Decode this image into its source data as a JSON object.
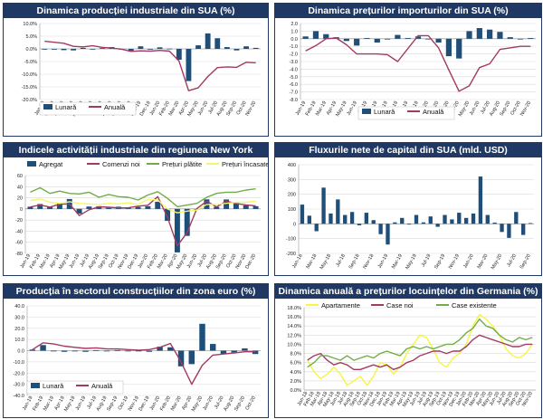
{
  "chart_data": [
    {
      "id": "p1",
      "type": "bar",
      "title": "Dinamica producției industriale din SUA (%)",
      "categories": [
        "Jan-19",
        "Feb-19",
        "Mar-19",
        "Apr-19",
        "May-19",
        "Jun-19",
        "Jul-19",
        "Aug-19",
        "Sep-19",
        "Oct-19",
        "Nov-19",
        "Dec-19",
        "Jan-20",
        "Feb-20",
        "Mar-20",
        "Apr-20",
        "May-20",
        "Jun-20",
        "Jul-20",
        "Aug-20",
        "Sep-20",
        "Oct-20",
        "Nov-20"
      ],
      "ylim": [
        -20,
        10
      ],
      "yticks": [
        10,
        5,
        0,
        -5,
        -10,
        -15,
        -20
      ],
      "ytick_labels": [
        "10.0%",
        "5.0%",
        "0.0%",
        "-5.0%",
        "-10.0%",
        "-15.0%",
        "-20.0%"
      ],
      "series": [
        {
          "name": "Lunară",
          "type": "bar",
          "color": "#1f4e79",
          "values": [
            -0.3,
            -0.3,
            -0.5,
            -0.6,
            0.4,
            0.0,
            0.3,
            0.7,
            -0.3,
            -0.7,
            1.0,
            -0.3,
            0.6,
            0.1,
            -4.3,
            -12.7,
            1.4,
            6.1,
            4.2,
            0.7,
            -0.6,
            1.0,
            0.4
          ]
        },
        {
          "name": "Anuală",
          "type": "line",
          "color": "#a23a63",
          "values": [
            3.0,
            2.6,
            2.2,
            1.0,
            0.8,
            1.2,
            0.6,
            0.3,
            -0.1,
            -1.0,
            -0.8,
            -0.9,
            -0.6,
            -0.9,
            -4.8,
            -16.5,
            -15.4,
            -10.9,
            -7.4,
            -7.1,
            -7.3,
            -5.3,
            -5.5
          ]
        }
      ]
    },
    {
      "id": "p2",
      "type": "bar",
      "title": "Dinamica prețurilor importurilor din SUA (%)",
      "categories": [
        "Jan-19",
        "Feb-19",
        "Mar-19",
        "Apr-19",
        "May-19",
        "Jun-19",
        "Jul-19",
        "Aug-19",
        "Sep-19",
        "Oct-19",
        "Nov-19",
        "Dec-19",
        "Jan-20",
        "Feb-20",
        "Mar-20",
        "Apr-20",
        "May-20",
        "Jun-20",
        "Jul-20",
        "Aug-20",
        "Sep-20",
        "Oct-20",
        "Nov-20"
      ],
      "ylim": [
        -8,
        2
      ],
      "yticks": [
        2,
        1,
        0,
        -1,
        -2,
        -3,
        -4,
        -5,
        -6,
        -7,
        -8
      ],
      "ytick_labels": [
        "2.0",
        "1.0",
        "0.0",
        "-1.0",
        "-2.0",
        "-3.0",
        "-4.0",
        "-5.0",
        "-6.0",
        "-7.0",
        "-8.0"
      ],
      "series": [
        {
          "name": "Lunară",
          "type": "bar",
          "color": "#1f4e79",
          "values": [
            0.3,
            1.0,
            0.6,
            0.2,
            -0.3,
            -0.9,
            0.1,
            -0.5,
            -0.1,
            0.5,
            0.1,
            0.3,
            0.0,
            -0.5,
            -2.3,
            -2.6,
            1.0,
            1.4,
            1.2,
            0.9,
            0.2,
            -0.1,
            0.1
          ]
        },
        {
          "name": "Anuală",
          "type": "line",
          "color": "#a23a63",
          "values": [
            -1.6,
            -0.9,
            0.0,
            0.1,
            -0.8,
            -2.0,
            -2.0,
            -2.0,
            -2.1,
            -3.0,
            -1.3,
            0.4,
            0.4,
            -1.2,
            -4.1,
            -6.9,
            -6.2,
            -3.8,
            -3.3,
            -1.4,
            -1.2,
            -1.0,
            -1.0
          ]
        }
      ]
    },
    {
      "id": "p3",
      "type": "bar",
      "title": "Indicele activității industriale din regiunea New York",
      "categories": [
        "Jan-19",
        "Feb-19",
        "Mar-19",
        "Apr-19",
        "May-19",
        "Jun-19",
        "Jul-19",
        "Aug-19",
        "Sep-19",
        "Oct-19",
        "Nov-19",
        "Dec-19",
        "Jan-20",
        "Feb-20",
        "Mar-20",
        "Apr-20",
        "May-20",
        "Jun-20",
        "Jul-20",
        "Aug-20",
        "Sep-20",
        "Oct-20",
        "Nov-20",
        "Dec-20"
      ],
      "ylim": [
        -80,
        60
      ],
      "yticks": [
        60,
        40,
        20,
        0,
        -20,
        -40,
        -60,
        -80
      ],
      "ytick_labels": [
        "60",
        "40",
        "20",
        "0",
        "-20",
        "-40",
        "-60",
        "-80"
      ],
      "series": [
        {
          "name": "Agregat",
          "type": "bar",
          "color": "#1f4e79",
          "values": [
            3.9,
            8.8,
            3.7,
            10.1,
            17.8,
            -8.6,
            4.3,
            4.8,
            2.0,
            4.0,
            2.9,
            3.5,
            4.8,
            12.9,
            -21.5,
            -78.2,
            -48.5,
            -0.2,
            17.2,
            3.7,
            17.0,
            10.5,
            6.3,
            4.9
          ]
        },
        {
          "name": "Comenzi noi",
          "type": "line",
          "color": "#a23a63",
          "values": [
            3.5,
            6.9,
            3.4,
            8.4,
            9.1,
            -12.0,
            -1.5,
            3.9,
            3.1,
            1.9,
            2.0,
            5.0,
            6.6,
            22.1,
            -15.1,
            -66.5,
            -42.4,
            0.8,
            13.9,
            3.7,
            14.1,
            9.7,
            7.3,
            5.4
          ]
        },
        {
          "name": "Prețuri plătite",
          "type": "line",
          "color": "#70ad47",
          "values": [
            30.0,
            38.0,
            28.0,
            32.0,
            28.0,
            27.0,
            30.0,
            21.0,
            26.0,
            22.0,
            21.0,
            16.0,
            25.0,
            31.0,
            19.0,
            4.0,
            7.0,
            10.0,
            21.0,
            28.0,
            30.0,
            30.0,
            34.0,
            36.0
          ]
        },
        {
          "name": "Prețuri încasate",
          "type": "line",
          "color": "#f5f56a",
          "values": [
            15.0,
            18.0,
            12.0,
            10.0,
            13.0,
            10.0,
            9.0,
            8.0,
            10.0,
            9.0,
            11.0,
            8.0,
            17.0,
            16.0,
            0.0,
            -7.0,
            -4.0,
            -2.0,
            8.0,
            8.0,
            10.0,
            12.0,
            12.0,
            14.0
          ]
        }
      ]
    },
    {
      "id": "p4",
      "type": "bar",
      "title": "Fluxurile nete de capital din SUA (mld. USD)",
      "categories": [
        "Jan-18",
        "Feb-18",
        "Mar-18",
        "Apr-18",
        "May-18",
        "Jun-18",
        "Jul-18",
        "Aug-18",
        "Sep-18",
        "Oct-18",
        "Nov-18",
        "Dec-18",
        "Jan-19",
        "Feb-19",
        "Mar-19",
        "Apr-19",
        "May-19",
        "Jun-19",
        "Jul-19",
        "Aug-19",
        "Sep-19",
        "Oct-19",
        "Nov-19",
        "Dec-19",
        "Jan-20",
        "Feb-20",
        "Mar-20",
        "Apr-20",
        "May-20",
        "Jun-20",
        "Jul-20",
        "Aug-20",
        "Sep-20"
      ],
      "ylim": [
        -200,
        400
      ],
      "yticks": [
        400,
        300,
        200,
        100,
        0,
        -100,
        -200
      ],
      "ytick_labels": [
        "400",
        "300",
        "200",
        "100",
        "0",
        "-100",
        "-200"
      ],
      "series": [
        {
          "name": "",
          "type": "bar",
          "color": "#1f4e79",
          "values": [
            130,
            55,
            -50,
            245,
            70,
            165,
            60,
            80,
            -10,
            75,
            25,
            -70,
            -140,
            10,
            40,
            0,
            60,
            10,
            50,
            -20,
            60,
            30,
            75,
            40,
            70,
            320,
            60,
            8,
            -55,
            -95,
            80,
            -75,
            5
          ]
        }
      ]
    },
    {
      "id": "p5",
      "type": "bar",
      "title": "Producția în sectorul construcțiilor din zona euro (%)",
      "categories": [
        "Jan-19",
        "Feb-19",
        "Mar-19",
        "Apr-19",
        "May-19",
        "Jun-19",
        "Jul-19",
        "Aug-19",
        "Sep-19",
        "Oct-19",
        "Nov-19",
        "Dec-19",
        "Jan-20",
        "Feb-20",
        "Mar-20",
        "Apr-20",
        "May-20",
        "Jun-20",
        "Jul-20",
        "Aug-20",
        "Sep-20",
        "Oct-20"
      ],
      "ylim": [
        -40,
        40
      ],
      "yticks": [
        40,
        30,
        20,
        10,
        0,
        -10,
        -20,
        -30,
        -40
      ],
      "ytick_labels": [
        "40.0",
        "30.0",
        "20.0",
        "10.0",
        "0.0",
        "-10.0",
        "-20.0",
        "-30.0",
        "-40.0"
      ],
      "series": [
        {
          "name": "Lunară",
          "type": "bar",
          "color": "#1f4e79",
          "values": [
            1.0,
            5.0,
            0.0,
            -1.0,
            0.0,
            -1.0,
            0.5,
            0.0,
            0.5,
            -0.5,
            -0.3,
            -1.0,
            3.6,
            3.0,
            -14.0,
            -12.0,
            24.0,
            6.0,
            -3.0,
            -1.5,
            2.0,
            -3.0
          ]
        },
        {
          "name": "Anuală",
          "type": "line",
          "color": "#a23a63",
          "values": [
            1.0,
            7.0,
            6.0,
            4.0,
            3.0,
            2.0,
            2.5,
            1.5,
            1.5,
            1.0,
            0.5,
            1.0,
            3.0,
            6.5,
            -10.0,
            -30.0,
            -13.0,
            -4.0,
            -3.0,
            -2.0,
            -1.0,
            -1.0
          ]
        }
      ]
    },
    {
      "id": "p6",
      "type": "line",
      "title": "Dinamica anuală a prețurilor locuințelor din Germania (%)",
      "categories": [
        "Jan-18",
        "Feb-18",
        "Mar-18",
        "Apr-18",
        "May-18",
        "Jun-18",
        "Jul-18",
        "Aug-18",
        "Sep-18",
        "Oct-18",
        "Nov-18",
        "Dec-18",
        "Jan-19",
        "Feb-19",
        "Mar-19",
        "Apr-19",
        "May-19",
        "Jun-19",
        "Jul-19",
        "Aug-19",
        "Sep-19",
        "Oct-19",
        "Nov-19",
        "Dec-19",
        "Jan-20",
        "Feb-20",
        "Mar-20",
        "Apr-20",
        "May-20",
        "Jun-20",
        "Jul-20",
        "Aug-20",
        "Sep-20",
        "Oct-20",
        "Nov-20"
      ],
      "ylim": [
        0,
        18
      ],
      "yticks": [
        18,
        16,
        14,
        12,
        10,
        8,
        6,
        4,
        2,
        0
      ],
      "ytick_labels": [
        "18.0%",
        "16.0%",
        "14.0%",
        "12.0%",
        "10.0%",
        "8.0%",
        "6.0%",
        "4.0%",
        "2.0%",
        "0.0%"
      ],
      "series": [
        {
          "name": "Apartamente",
          "type": "line",
          "color": "#f5f542",
          "values": [
            6.5,
            4.0,
            2.5,
            3.5,
            5.0,
            3.5,
            1.0,
            2.0,
            3.0,
            1.0,
            3.0,
            6.0,
            5.5,
            3.5,
            5.0,
            8.0,
            10.0,
            12.0,
            11.5,
            9.0,
            6.0,
            5.0,
            7.0,
            8.0,
            10.0,
            14.0,
            16.5,
            15.5,
            14.0,
            12.0,
            9.0,
            7.5,
            7.0,
            8.0,
            10.0
          ]
        },
        {
          "name": "Case noi",
          "type": "line",
          "color": "#a23a63",
          "values": [
            6.5,
            7.5,
            8.0,
            6.5,
            5.5,
            6.0,
            5.5,
            4.5,
            4.5,
            5.0,
            5.5,
            5.0,
            5.5,
            4.5,
            5.0,
            6.0,
            6.5,
            7.5,
            8.0,
            8.5,
            8.5,
            8.0,
            8.5,
            8.5,
            9.5,
            11.0,
            12.0,
            11.5,
            11.0,
            10.5,
            10.0,
            9.5,
            9.5,
            10.0,
            10.0
          ]
        },
        {
          "name": "Case existente",
          "type": "line",
          "color": "#70ad47",
          "values": [
            5.0,
            6.0,
            7.5,
            7.5,
            7.0,
            6.5,
            7.5,
            6.5,
            7.0,
            7.5,
            7.0,
            8.0,
            8.5,
            8.0,
            7.5,
            9.0,
            9.5,
            9.0,
            9.5,
            9.0,
            9.5,
            10.0,
            10.0,
            11.0,
            12.5,
            13.5,
            15.5,
            14.0,
            13.5,
            12.0,
            11.0,
            10.5,
            11.5,
            11.0,
            11.5
          ]
        }
      ]
    }
  ]
}
